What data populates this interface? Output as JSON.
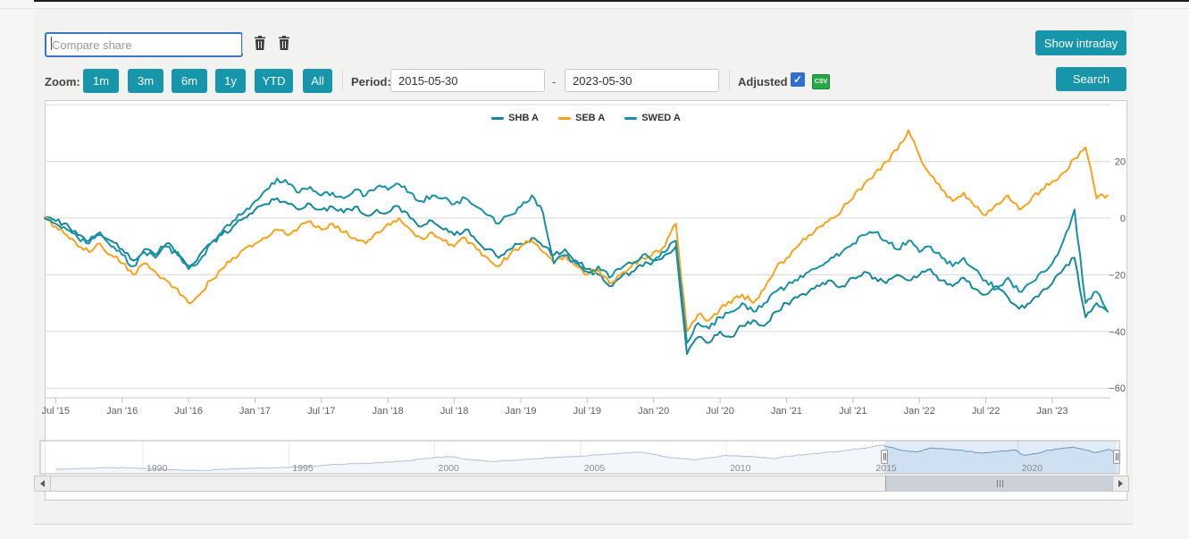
{
  "toolbar": {
    "compare_placeholder": "Compare share",
    "show_intraday_label": "Show intraday",
    "zoom_label": "Zoom:",
    "zoom_buttons": [
      "1m",
      "3m",
      "6m",
      "1y",
      "YTD",
      "All"
    ],
    "period_label": "Period:",
    "date_from": "2015-05-30",
    "date_to": "2023-05-30",
    "range_separator": "-",
    "adjusted_label": "Adjusted",
    "adjusted_checked": true,
    "checkbox_glyph": "✓",
    "csv_icon_label": "CSV",
    "search_label": "Search",
    "icons": [
      "trash-icon",
      "trash-icon",
      "csv-icon"
    ]
  },
  "colors": {
    "accent": "#1795ab",
    "focus_blue": "#3a76c4",
    "checkbox_blue": "#2d6fd2",
    "csv_green": "#28a745",
    "grid": "#d8d8d8",
    "axis_text": "#606060",
    "nav_line": "#55799f",
    "nav_fill": "#e4edf7",
    "nav_selection": "#aac8ec"
  },
  "chart_data": {
    "type": "line",
    "title": "",
    "legend_position": "top-center",
    "grid": true,
    "ylim": [
      -60,
      42
    ],
    "ygrid": [
      40,
      20,
      0,
      -20,
      -40,
      -60
    ],
    "ytick_labels": [
      20,
      0,
      -20,
      -40,
      -60
    ],
    "xtick_labels": [
      "Jul '15",
      "Jan '16",
      "Jul '16",
      "Jan '17",
      "Jul '17",
      "Jan '18",
      "Jul '18",
      "Jan '19",
      "Jul '19",
      "Jan '20",
      "Jul '20",
      "Jan '21",
      "Jul '21",
      "Jan '22",
      "Jul '22",
      "Jan '23"
    ],
    "x_range_years": [
      2015.417,
      2023.417
    ],
    "unit": "percent change",
    "legend": [
      {
        "name": "SHB A",
        "color": "#17879b"
      },
      {
        "name": "SEB A",
        "color": "#f9a21c"
      },
      {
        "name": "SWED A",
        "color": "#1791a7"
      }
    ],
    "series": [
      {
        "name": "SHB A",
        "color": "#17879b",
        "start_year": 2015.417,
        "step_months": 1,
        "values": [
          0,
          -1,
          -2,
          -6,
          -8,
          -5,
          -8,
          -11,
          -15,
          -11,
          -13,
          -9,
          -12,
          -17,
          -13,
          -9,
          -6,
          -3,
          0,
          3,
          5,
          7,
          5,
          3,
          5,
          3,
          4,
          2,
          4,
          1,
          3,
          2,
          4,
          0,
          -3,
          -1,
          -4,
          -6,
          -4,
          -8,
          -11,
          -14,
          -11,
          -9,
          -7,
          -10,
          -13,
          -11,
          -15,
          -18,
          -20,
          -24,
          -21,
          -19,
          -17,
          -15,
          -13,
          -10,
          -48,
          -42,
          -44,
          -40,
          -42,
          -38,
          -36,
          -38,
          -33,
          -30,
          -28,
          -26,
          -24,
          -22,
          -24,
          -21,
          -19,
          -21,
          -23,
          -20,
          -22,
          -20,
          -18,
          -22,
          -24,
          -21,
          -25,
          -27,
          -24,
          -28,
          -32,
          -30,
          -26,
          -23,
          -18,
          -14,
          -35,
          -30,
          -33
        ]
      },
      {
        "name": "SEB A",
        "color": "#f9a21c",
        "start_year": 2015.417,
        "step_months": 1,
        "values": [
          0,
          -3,
          -6,
          -10,
          -12,
          -9,
          -13,
          -16,
          -20,
          -16,
          -19,
          -22,
          -25,
          -30,
          -27,
          -22,
          -18,
          -14,
          -11,
          -9,
          -7,
          -4,
          -6,
          -3,
          -1,
          -4,
          -2,
          -5,
          -7,
          -9,
          -5,
          -2,
          0,
          -4,
          -7,
          -5,
          -8,
          -10,
          -7,
          -11,
          -14,
          -17,
          -13,
          -10,
          -8,
          -12,
          -16,
          -13,
          -17,
          -20,
          -18,
          -23,
          -20,
          -17,
          -14,
          -12,
          -10,
          -2,
          -40,
          -34,
          -36,
          -32,
          -30,
          -27,
          -30,
          -25,
          -18,
          -14,
          -10,
          -6,
          -3,
          0,
          3,
          7,
          12,
          16,
          20,
          24,
          31,
          22,
          15,
          10,
          6,
          9,
          4,
          1,
          5,
          8,
          3,
          6,
          10,
          13,
          16,
          21,
          25,
          7,
          8
        ]
      },
      {
        "name": "SWED A",
        "color": "#1791a7",
        "start_year": 2015.417,
        "step_months": 1,
        "values": [
          0,
          -2,
          -4,
          -7,
          -9,
          -6,
          -10,
          -13,
          -17,
          -12,
          -14,
          -10,
          -13,
          -18,
          -15,
          -9,
          -5,
          -1,
          2,
          6,
          10,
          14,
          12,
          9,
          11,
          8,
          9,
          7,
          10,
          8,
          11,
          10,
          12,
          9,
          6,
          8,
          7,
          5,
          7,
          4,
          1,
          -2,
          1,
          4,
          8,
          2,
          -16,
          -13,
          -16,
          -19,
          -17,
          -21,
          -18,
          -16,
          -13,
          -15,
          -12,
          -8,
          -44,
          -37,
          -39,
          -35,
          -33,
          -30,
          -33,
          -30,
          -26,
          -24,
          -22,
          -19,
          -17,
          -14,
          -12,
          -9,
          -6,
          -5,
          -8,
          -11,
          -8,
          -12,
          -10,
          -14,
          -17,
          -14,
          -18,
          -22,
          -25,
          -21,
          -26,
          -23,
          -19,
          -16,
          -8,
          3,
          -30,
          -26,
          -33
        ]
      }
    ]
  },
  "navigator": {
    "range_years": [
      1987.0,
      2023.47
    ],
    "selection_years": [
      2015.417,
      2023.47
    ],
    "year_labels": [
      {
        "year": 1990,
        "label": "1990"
      },
      {
        "year": 1995,
        "label": "1995"
      },
      {
        "year": 2000,
        "label": "2000"
      },
      {
        "year": 2005,
        "label": "2005"
      },
      {
        "year": 2010,
        "label": "2010"
      },
      {
        "year": 2015,
        "label": "2015"
      },
      {
        "year": 2020,
        "label": "2020"
      }
    ],
    "series_relative": [
      [
        1987,
        0.1
      ],
      [
        1988,
        0.13
      ],
      [
        1989,
        0.16
      ],
      [
        1990,
        0.13
      ],
      [
        1991,
        0.07
      ],
      [
        1992,
        0.05
      ],
      [
        1993,
        0.11
      ],
      [
        1994,
        0.14
      ],
      [
        1995,
        0.16
      ],
      [
        1996,
        0.22
      ],
      [
        1997,
        0.29
      ],
      [
        1998,
        0.33
      ],
      [
        1999,
        0.4
      ],
      [
        2000,
        0.52
      ],
      [
        2000.6,
        0.56
      ],
      [
        2001,
        0.47
      ],
      [
        2002,
        0.38
      ],
      [
        2003,
        0.44
      ],
      [
        2004,
        0.52
      ],
      [
        2005,
        0.57
      ],
      [
        2006,
        0.65
      ],
      [
        2007,
        0.72
      ],
      [
        2007.6,
        0.62
      ],
      [
        2008,
        0.52
      ],
      [
        2008.9,
        0.44
      ],
      [
        2009.5,
        0.52
      ],
      [
        2010,
        0.6
      ],
      [
        2011,
        0.54
      ],
      [
        2011.6,
        0.48
      ],
      [
        2012,
        0.55
      ],
      [
        2013,
        0.66
      ],
      [
        2014,
        0.76
      ],
      [
        2015,
        0.9
      ],
      [
        2015.35,
        0.97
      ],
      [
        2016,
        0.78
      ],
      [
        2016.5,
        0.72
      ],
      [
        2017,
        0.86
      ],
      [
        2017.5,
        0.83
      ],
      [
        2018,
        0.79
      ],
      [
        2018.8,
        0.68
      ],
      [
        2019.3,
        0.74
      ],
      [
        2019.9,
        0.79
      ],
      [
        2020.2,
        0.6
      ],
      [
        2020.7,
        0.68
      ],
      [
        2021,
        0.78
      ],
      [
        2021.9,
        0.9
      ],
      [
        2022.2,
        0.83
      ],
      [
        2022.6,
        0.7
      ],
      [
        2022.9,
        0.76
      ],
      [
        2023.1,
        0.82
      ],
      [
        2023.3,
        0.72
      ],
      [
        2023.47,
        0.68
      ]
    ]
  }
}
